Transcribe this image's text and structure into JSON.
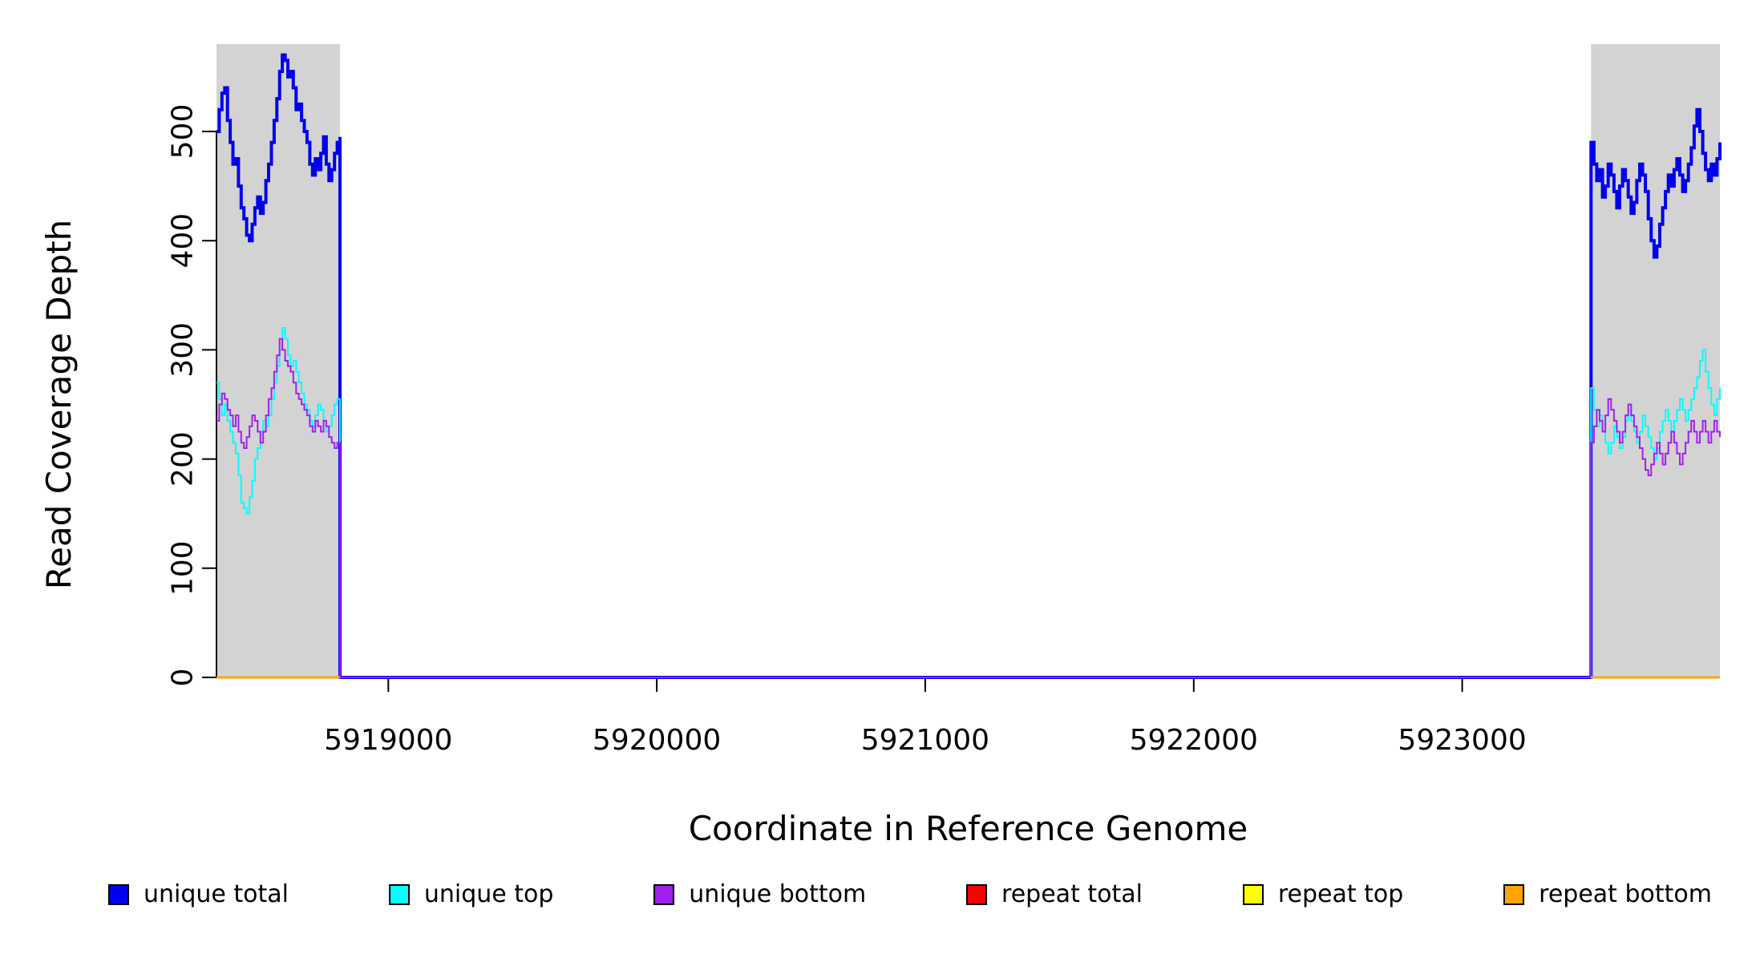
{
  "chart_data": {
    "type": "line",
    "title": "",
    "xlabel": "Coordinate in Reference Genome",
    "ylabel": "Read Coverage Depth",
    "xlim": [
      5918360,
      5923960
    ],
    "ylim": [
      0,
      580
    ],
    "x_ticks": [
      5919000,
      5920000,
      5921000,
      5922000,
      5923000
    ],
    "y_ticks": [
      0,
      100,
      200,
      300,
      400,
      500
    ],
    "grid": false,
    "legend_position": "bottom",
    "background_color": "#ffffff",
    "highlight_color": "#d3d3d3",
    "line_style": "step",
    "highlight_regions": [
      {
        "name": "left-flank",
        "x0": 5918360,
        "x1": 5918820
      },
      {
        "name": "right-flank",
        "x0": 5923480,
        "x1": 5923960
      }
    ],
    "unique_series": [
      {
        "name": "unique total",
        "color": "#0000EE",
        "line_width": 4,
        "gap_value": 0,
        "left_y": [
          500,
          520,
          535,
          540,
          510,
          490,
          470,
          475,
          450,
          430,
          420,
          405,
          400,
          415,
          430,
          440,
          425,
          435,
          455,
          470,
          490,
          510,
          530,
          555,
          570,
          565,
          550,
          555,
          540,
          520,
          525,
          510,
          500,
          490,
          470,
          460,
          475,
          465,
          480,
          495,
          470,
          455,
          465,
          480,
          490,
          495
        ],
        "right_y": [
          490,
          470,
          455,
          465,
          440,
          450,
          470,
          460,
          445,
          430,
          450,
          465,
          455,
          440,
          425,
          435,
          455,
          470,
          460,
          445,
          420,
          400,
          385,
          395,
          415,
          430,
          445,
          460,
          450,
          465,
          475,
          460,
          445,
          455,
          470,
          485,
          505,
          520,
          500,
          480,
          465,
          455,
          470,
          460,
          475,
          490
        ]
      },
      {
        "name": "unique top",
        "color": "#00FFFF",
        "line_width": 2,
        "gap_value": 0,
        "left_y": [
          270,
          255,
          240,
          250,
          235,
          225,
          215,
          205,
          185,
          160,
          155,
          150,
          165,
          180,
          200,
          210,
          225,
          235,
          230,
          240,
          255,
          270,
          285,
          300,
          320,
          310,
          295,
          285,
          290,
          280,
          270,
          260,
          250,
          245,
          235,
          230,
          240,
          250,
          245,
          235,
          225,
          230,
          240,
          250,
          255,
          250
        ],
        "right_y": [
          265,
          245,
          230,
          240,
          225,
          215,
          205,
          215,
          230,
          220,
          210,
          220,
          235,
          245,
          235,
          225,
          215,
          225,
          240,
          230,
          220,
          210,
          200,
          210,
          225,
          235,
          245,
          235,
          225,
          235,
          245,
          255,
          245,
          235,
          245,
          255,
          265,
          275,
          290,
          300,
          280,
          265,
          250,
          240,
          255,
          265
        ]
      },
      {
        "name": "unique bottom",
        "color": "#A020F0",
        "line_width": 2,
        "gap_value": 0,
        "left_y": [
          235,
          250,
          260,
          255,
          245,
          240,
          230,
          240,
          225,
          215,
          210,
          220,
          230,
          240,
          235,
          225,
          215,
          225,
          240,
          255,
          265,
          280,
          295,
          310,
          300,
          290,
          285,
          280,
          270,
          260,
          255,
          250,
          245,
          240,
          230,
          225,
          235,
          230,
          225,
          235,
          230,
          220,
          215,
          210,
          215,
          210
        ],
        "right_y": [
          215,
          230,
          245,
          235,
          225,
          240,
          255,
          245,
          235,
          225,
          215,
          225,
          240,
          250,
          240,
          230,
          220,
          210,
          200,
          190,
          185,
          195,
          205,
          215,
          205,
          195,
          205,
          215,
          225,
          215,
          205,
          195,
          205,
          215,
          225,
          235,
          225,
          215,
          225,
          235,
          225,
          215,
          225,
          235,
          225,
          220
        ]
      }
    ],
    "repeat_series": [
      {
        "name": "repeat total",
        "color": "#FF0000",
        "line_width": 3,
        "value": 0
      },
      {
        "name": "repeat top",
        "color": "#FFFF00",
        "line_width": 3,
        "value": 0
      },
      {
        "name": "repeat bottom",
        "color": "#FFA500",
        "line_width": 3,
        "value": 0
      }
    ],
    "legend": [
      {
        "label": "unique total",
        "color": "#0000EE"
      },
      {
        "label": "unique top",
        "color": "#00FFFF"
      },
      {
        "label": "unique bottom",
        "color": "#A020F0"
      },
      {
        "label": "repeat total",
        "color": "#FF0000"
      },
      {
        "label": "repeat top",
        "color": "#FFFF00"
      },
      {
        "label": "repeat bottom",
        "color": "#FFA500"
      }
    ]
  }
}
